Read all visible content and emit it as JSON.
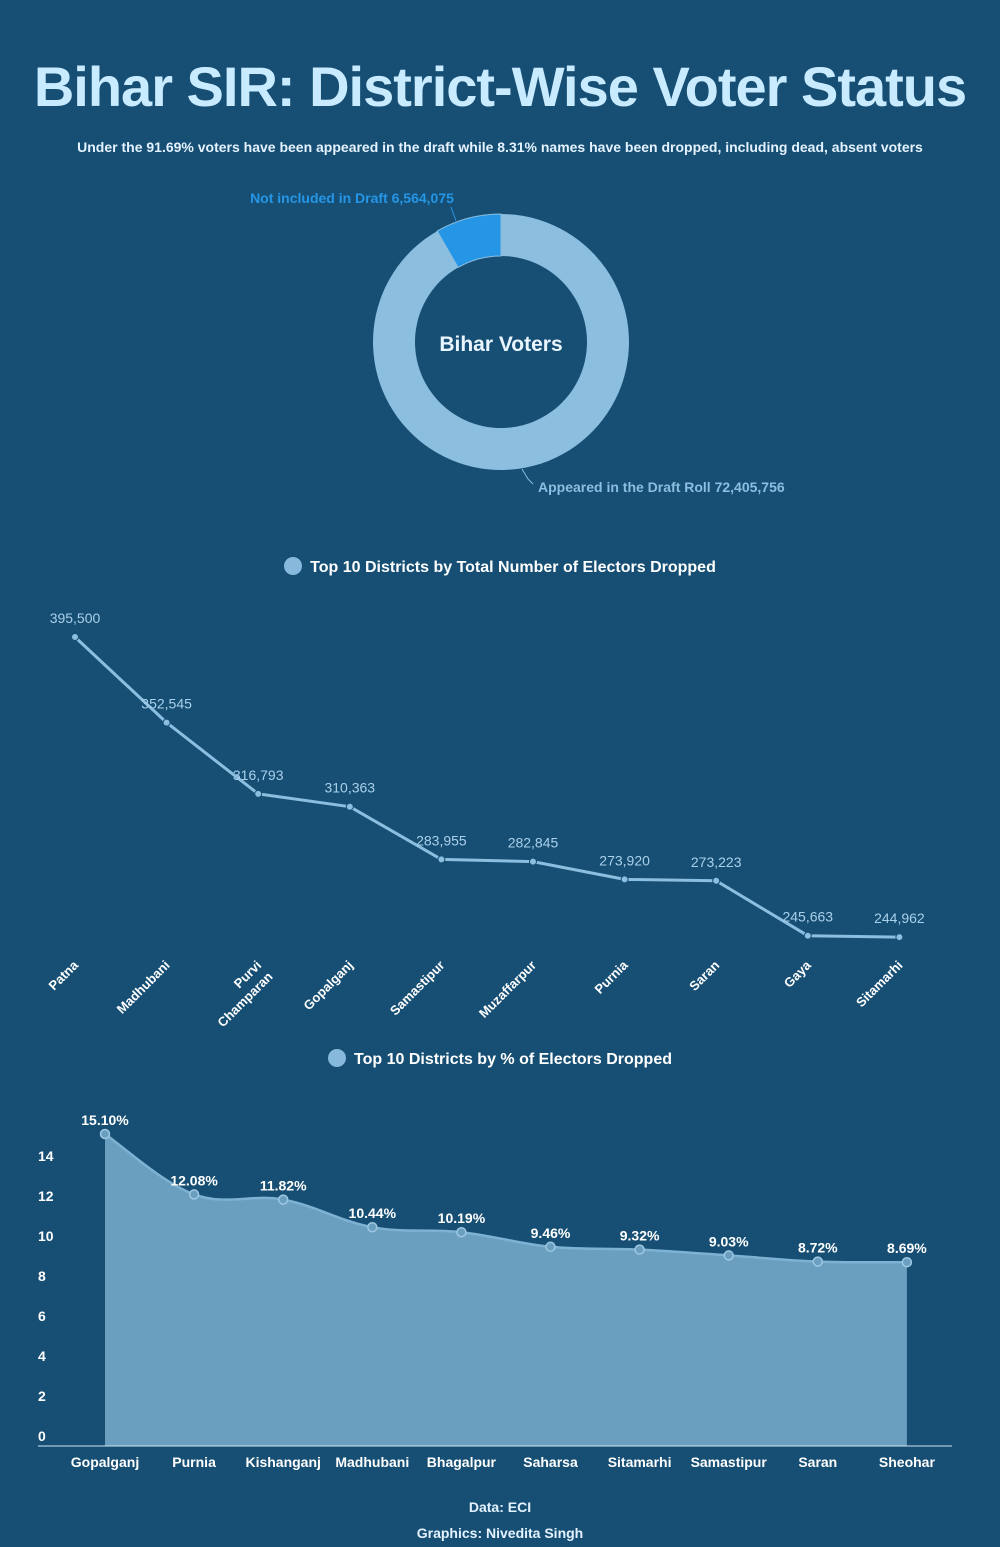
{
  "title": "Bihar SIR: District-Wise Voter Status",
  "subtitle": "Under the 91.69% voters have been appeared in the draft while 8.31% names have been dropped, including dead, absent voters",
  "colors": {
    "background": "#174f74",
    "donut_main": "#8bbedf",
    "donut_dropped": "#2596e6",
    "line": "#8bbedf",
    "area_fill": "#6a9fc0",
    "title": "#c9ebff"
  },
  "footer": {
    "data_source": "Data: ECI",
    "graphics_credit": "Graphics: Nivedita Singh"
  },
  "chart_data": [
    {
      "type": "pie",
      "style": "donut",
      "center_label": "Bihar Voters",
      "slices": [
        {
          "name": "Appeared in the Draft Roll",
          "value": 72405756,
          "value_label": "72,405,756"
        },
        {
          "name": "Not included in Draft",
          "value": 6564075,
          "value_label": "6,564,075"
        }
      ]
    },
    {
      "type": "line",
      "title": "Top 10 Districts by Total Number of Electors Dropped",
      "categories": [
        "Patna",
        "Madhubani",
        "Purvi Champaran",
        "Gopalganj",
        "Samastipur",
        "Muzaffarpur",
        "Purnia",
        "Saran",
        "Gaya",
        "Sitamarhi"
      ],
      "values": [
        395500,
        352545,
        316793,
        310363,
        283955,
        282845,
        273920,
        273223,
        245663,
        244962
      ],
      "value_labels": [
        "395,500",
        "352,545",
        "316,793",
        "310,363",
        "283,955",
        "282,845",
        "273,920",
        "273,223",
        "245,663",
        "244,962"
      ],
      "ylim": [
        235000,
        400000
      ],
      "grid": false,
      "y_axis_shown": false
    },
    {
      "type": "area",
      "title": "Top 10 Districts by % of Electors Dropped",
      "categories": [
        "Gopalganj",
        "Purnia",
        "Kishanganj",
        "Madhubani",
        "Bhagalpur",
        "Saharsa",
        "Sitamarhi",
        "Samastipur",
        "Saran",
        "Sheohar"
      ],
      "values": [
        15.1,
        12.08,
        11.82,
        10.44,
        10.19,
        9.46,
        9.32,
        9.03,
        8.72,
        8.69
      ],
      "value_labels": [
        "15.10%",
        "12.08%",
        "11.82%",
        "10.44%",
        "10.19%",
        "9.46%",
        "9.32%",
        "9.03%",
        "8.72%",
        "8.69%"
      ],
      "y_ticks": [
        "0",
        "2",
        "4",
        "6",
        "8",
        "10",
        "12",
        "14"
      ],
      "ylim": [
        0,
        15
      ],
      "grid": false
    }
  ]
}
